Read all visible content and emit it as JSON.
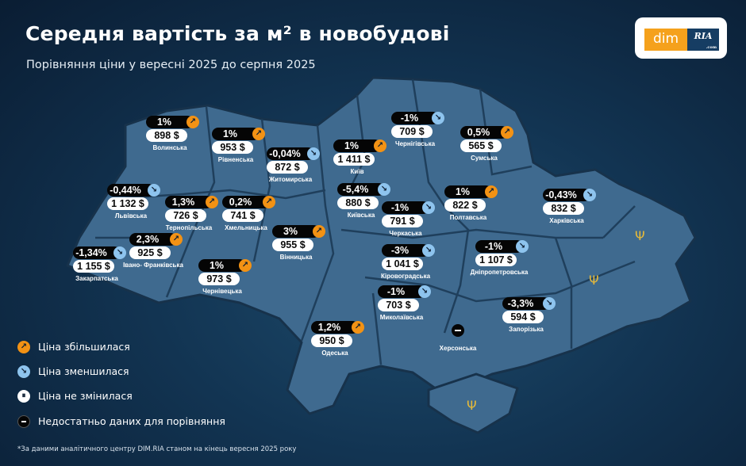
{
  "header": {
    "title": "Середня вартість за м² в новобудові",
    "subtitle": "Порівняння ціни у вересні 2025 до серпня 2025"
  },
  "logo": {
    "text": "dim RIA .com"
  },
  "colors": {
    "increase": "#f39214",
    "decrease": "#8ec4ee",
    "map_fill": "#3f6a8f",
    "background": "#0f2d48"
  },
  "regions": [
    {
      "name": "Волинська",
      "change": "1%",
      "trend": "up",
      "price": "898 $"
    },
    {
      "name": "Рівненська",
      "change": "1%",
      "trend": "up",
      "price": "953 $"
    },
    {
      "name": "Житомирська",
      "change": "-0,04%",
      "trend": "down",
      "price": "872 $"
    },
    {
      "name": "Львівська",
      "change": "-0,44%",
      "trend": "down",
      "price": "1 132 $"
    },
    {
      "name": "Тернопільська",
      "change": "1,3%",
      "trend": "up",
      "price": "726 $"
    },
    {
      "name": "Хмельницька",
      "change": "0,2%",
      "trend": "up",
      "price": "741 $"
    },
    {
      "name": "Вінницька",
      "change": "3%",
      "trend": "up",
      "price": "955 $"
    },
    {
      "name": "Івано- Франківська",
      "change": "2,3%",
      "trend": "up",
      "price": "925 $"
    },
    {
      "name": "Закарпатська",
      "change": "-1,34%",
      "trend": "down",
      "price": "1 155 $"
    },
    {
      "name": "Чернівецька",
      "change": "1%",
      "trend": "up",
      "price": "973 $"
    },
    {
      "name": "Чернігівська",
      "change": "-1%",
      "trend": "down",
      "price": "709 $"
    },
    {
      "name": "Сумська",
      "change": "0,5%",
      "trend": "up",
      "price": "565 $"
    },
    {
      "name": "Київ",
      "change": "1%",
      "trend": "up",
      "price": "1 411 $"
    },
    {
      "name": "Київська",
      "change": "-5,4%",
      "trend": "down",
      "price": "880 $"
    },
    {
      "name": "Черкаська",
      "change": "-1%",
      "trend": "down",
      "price": "791 $"
    },
    {
      "name": "Полтавська",
      "change": "1%",
      "trend": "up",
      "price": "822 $"
    },
    {
      "name": "Харківська",
      "change": "-0,43%",
      "trend": "down",
      "price": "832 $"
    },
    {
      "name": "Кіровоградська",
      "change": "-3%",
      "trend": "down",
      "price": "1 041 $"
    },
    {
      "name": "Дніпропетровська",
      "change": "-1%",
      "trend": "down",
      "price": "1 107 $"
    },
    {
      "name": "Миколаївська",
      "change": "-1%",
      "trend": "down",
      "price": "703 $"
    },
    {
      "name": "Запорізька",
      "change": "-3,3%",
      "trend": "down",
      "price": "594 $"
    },
    {
      "name": "Одеська",
      "change": "1,2%",
      "trend": "up",
      "price": "950 $"
    },
    {
      "name": "Херсонська",
      "change": "",
      "trend": "no-data",
      "price": ""
    }
  ],
  "legend": [
    {
      "label": "Ціна збільшилася",
      "icon": "arrow-up-right-icon"
    },
    {
      "label": "Ціна зменшилася",
      "icon": "arrow-down-right-icon"
    },
    {
      "label": "Ціна не змінилася",
      "icon": "pause-icon"
    },
    {
      "label": "Недостатньо даних для порівняння",
      "icon": "minus-icon"
    }
  ],
  "footnote": "*За даними аналітичного центру DIM.RIA станом на кінець вересня 2025 року"
}
